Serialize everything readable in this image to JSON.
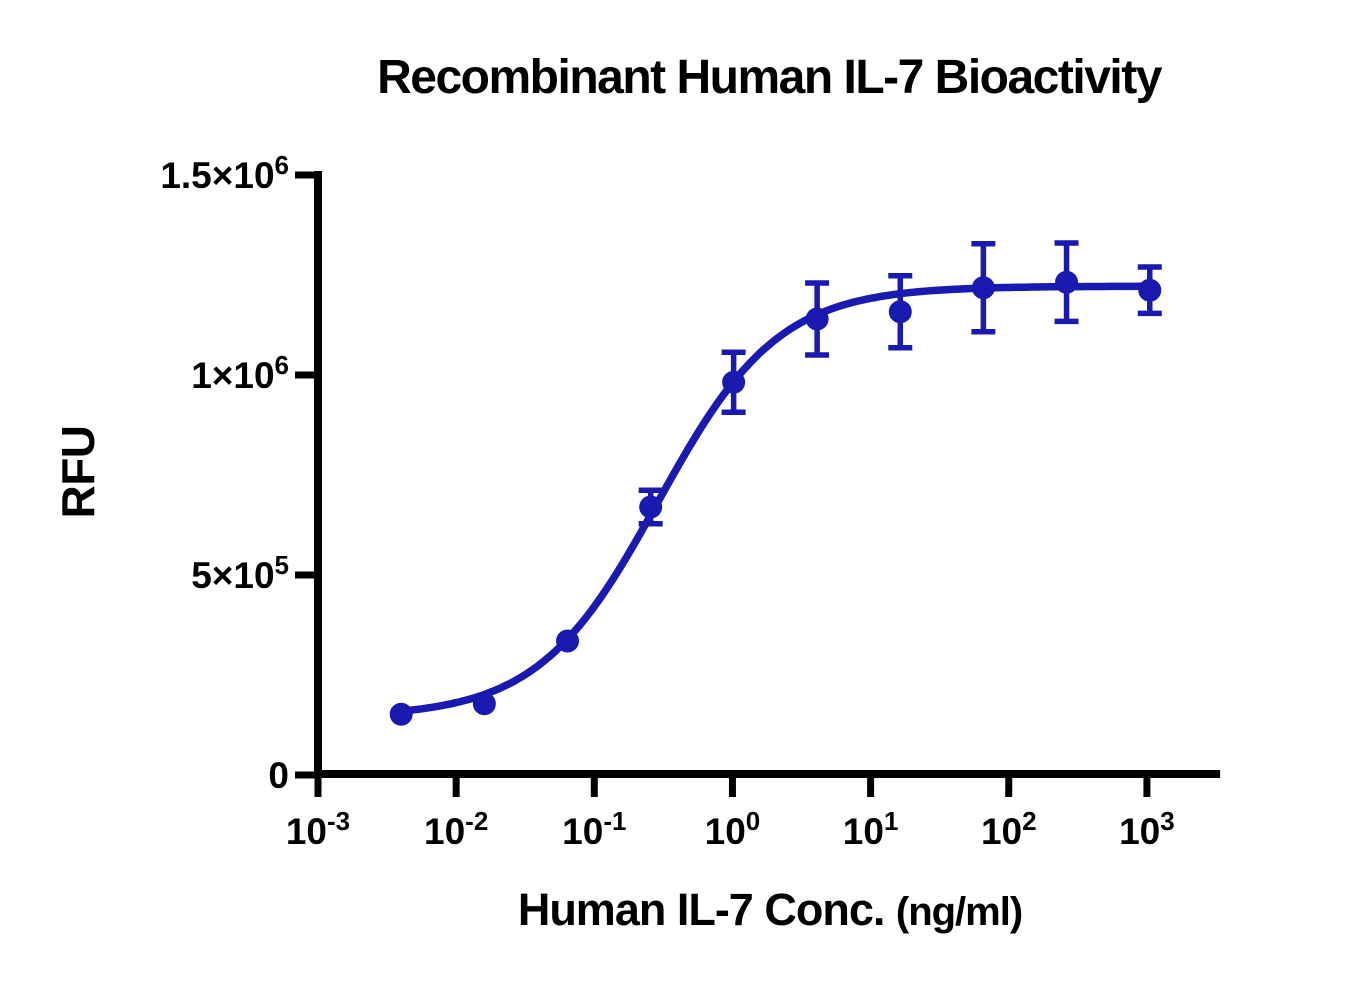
{
  "chart_data": {
    "type": "scatter",
    "title": "Recombinant Human IL-7 Bioactivity",
    "xlabel": "Human IL-7 Conc.",
    "xlabel_unit": "(ng/ml)",
    "ylabel": "RFU",
    "x_scale": "log10",
    "xlim_exponents": [
      -3,
      3.53
    ],
    "ylim": [
      0,
      1500000
    ],
    "grid": false,
    "legend": "none",
    "x_ticks": [
      {
        "base": "10",
        "exp": "-3",
        "value": 0.001
      },
      {
        "base": "10",
        "exp": "-2",
        "value": 0.01
      },
      {
        "base": "10",
        "exp": "-1",
        "value": 0.1
      },
      {
        "base": "10",
        "exp": "0",
        "value": 1
      },
      {
        "base": "10",
        "exp": "1",
        "value": 10
      },
      {
        "base": "10",
        "exp": "2",
        "value": 100
      },
      {
        "base": "10",
        "exp": "3",
        "value": 1000
      }
    ],
    "y_ticks": [
      {
        "mantissa": "0",
        "exp": "",
        "value": 0
      },
      {
        "mantissa": "5×10",
        "exp": "5",
        "value": 500000
      },
      {
        "mantissa": "1×10",
        "exp": "6",
        "value": 1000000
      },
      {
        "mantissa": "1.5×10",
        "exp": "6",
        "value": 1500000
      }
    ],
    "series": [
      {
        "name": "Human IL-7",
        "x": [
          0.004,
          0.016,
          0.064,
          0.256,
          1.02,
          4.1,
          16.4,
          65.5,
          262,
          1049
        ],
        "y": [
          152000,
          178000,
          335000,
          670000,
          982000,
          1140000,
          1158000,
          1218000,
          1232000,
          1212000
        ],
        "y_err": [
          0,
          0,
          0,
          42000,
          75000,
          90000,
          90000,
          110000,
          98000,
          58000
        ]
      }
    ],
    "curve_fit": {
      "model": "4PL",
      "bottom": 145000,
      "top": 1222000,
      "ec50": 0.29,
      "hill": 1.0
    },
    "colors": {
      "curve": "#1a1ab0",
      "axis": "#000000",
      "text": "#000000",
      "background": "#ffffff"
    }
  }
}
